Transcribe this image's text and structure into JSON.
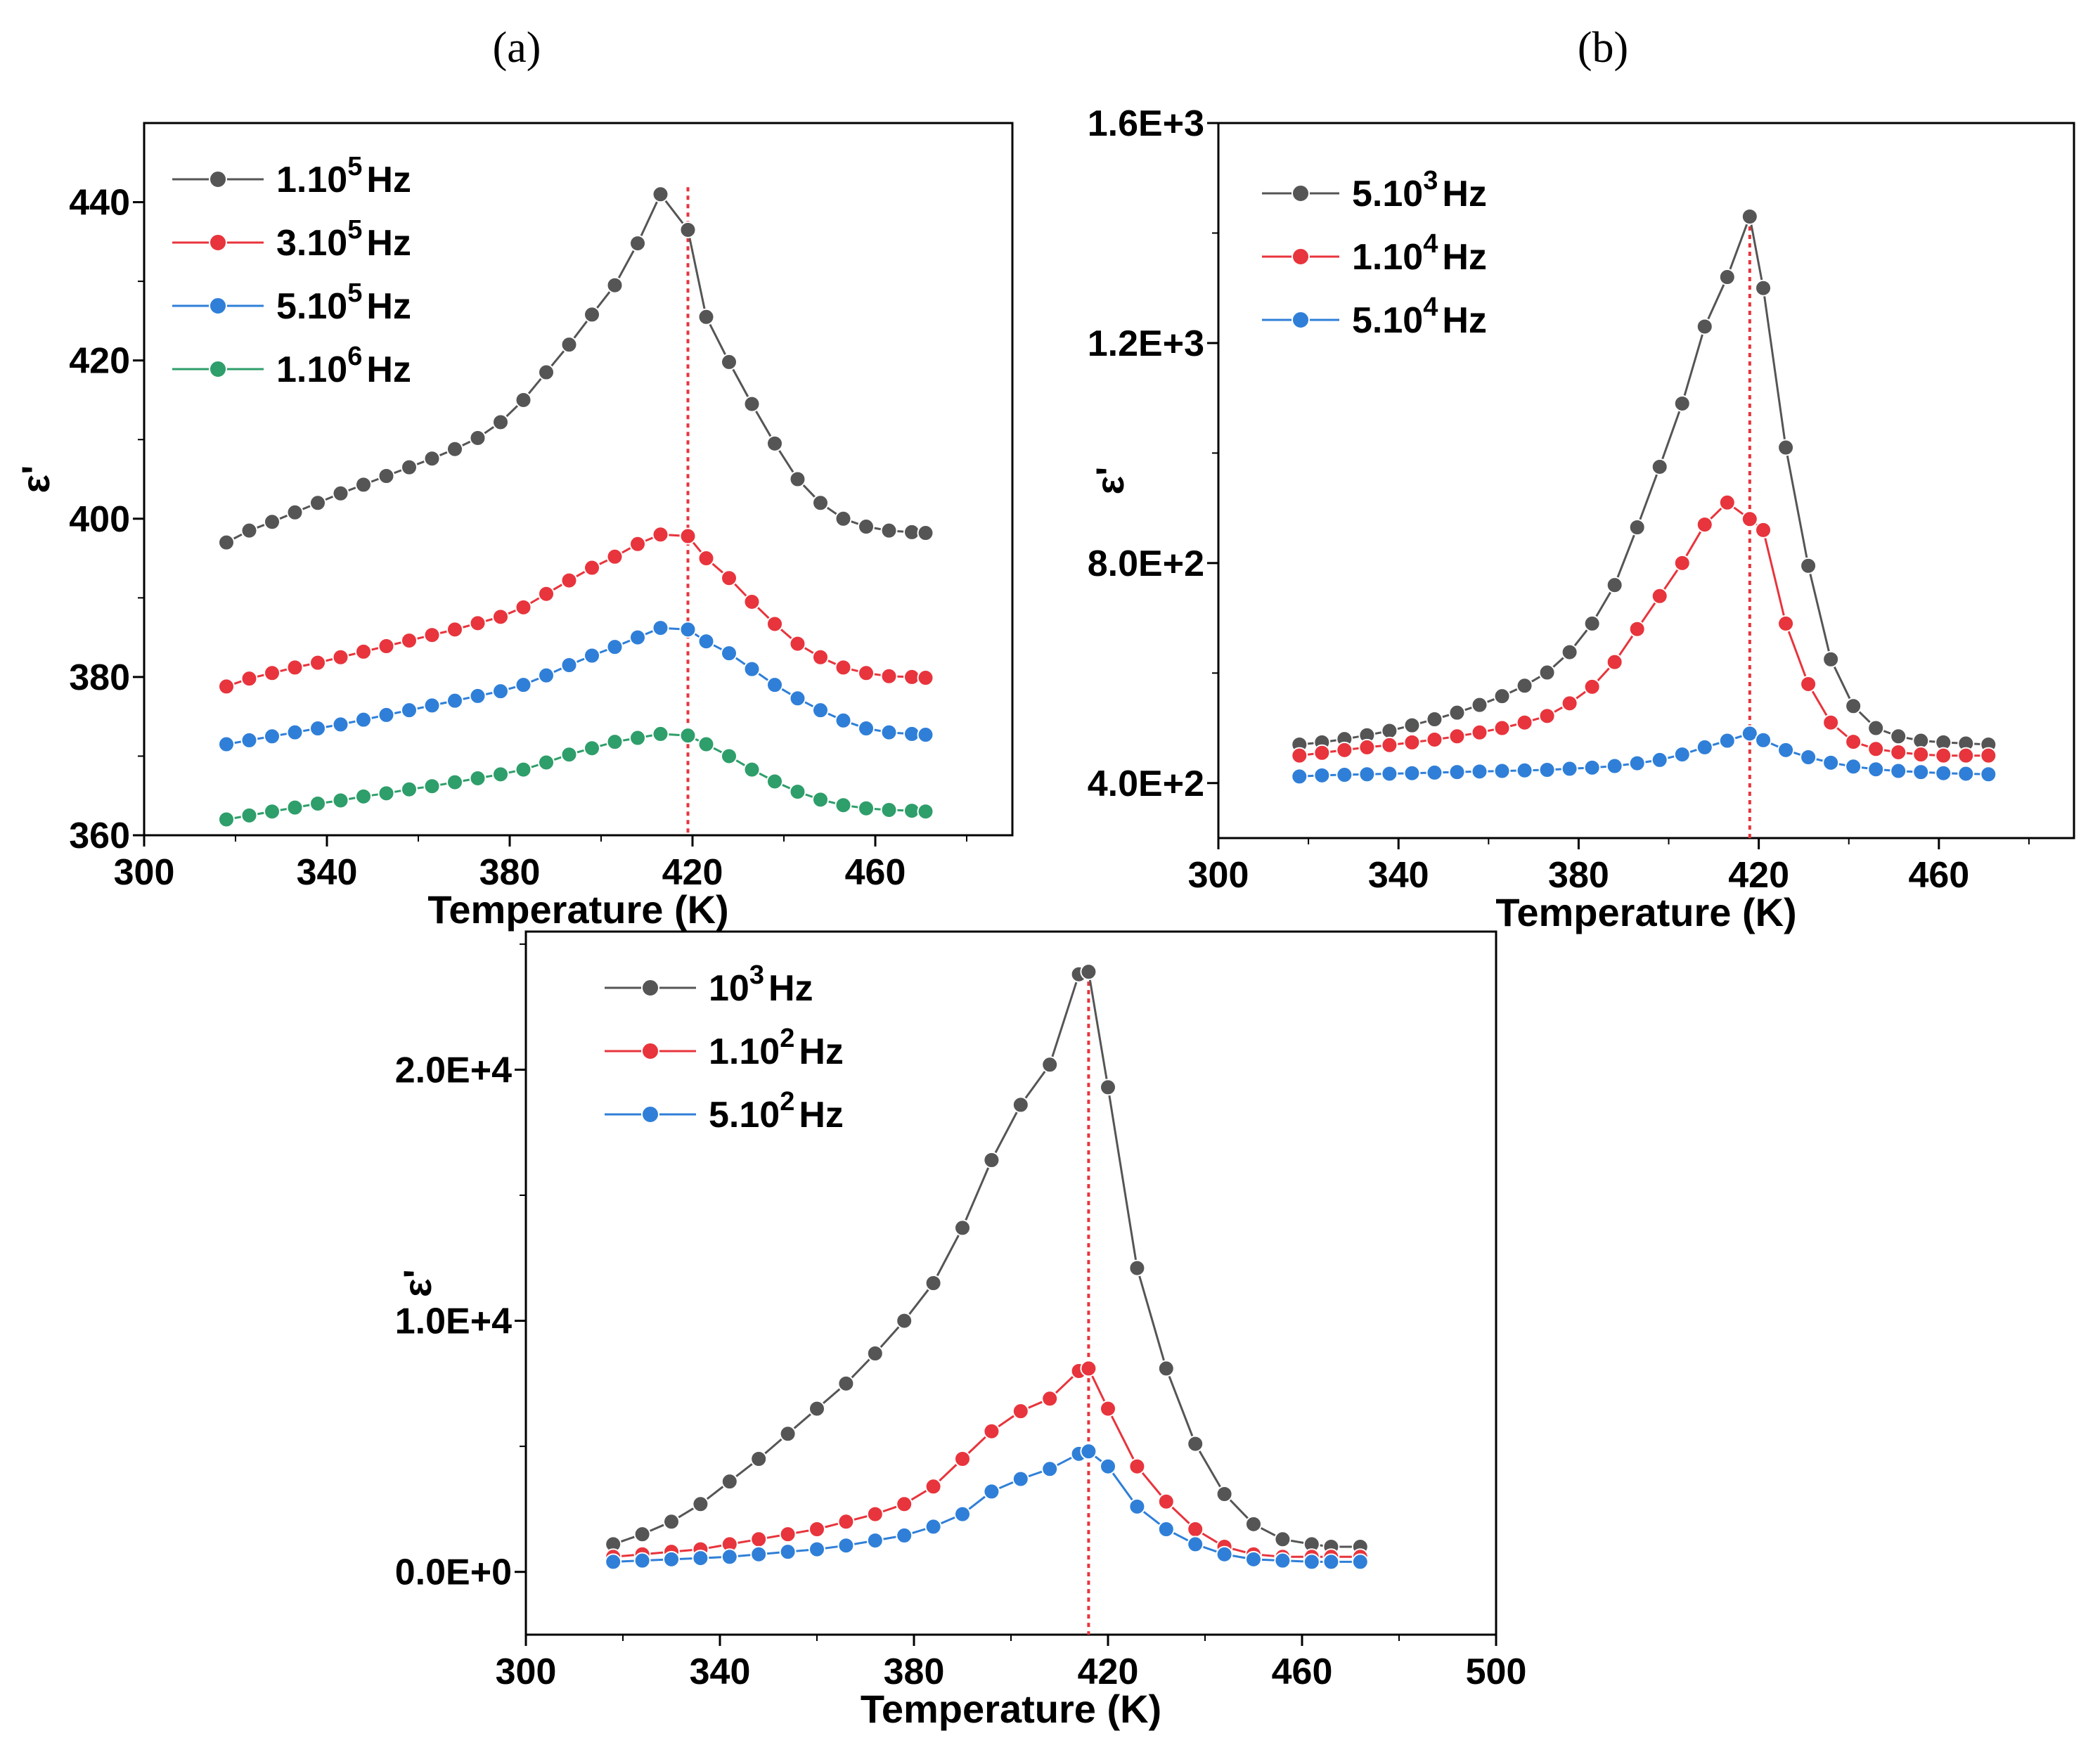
{
  "chart_data": [
    {
      "panel": "a",
      "panel_label": "(a)",
      "type": "line",
      "xlabel": "Temperature (K)",
      "ylabel": "ε'",
      "xlim": [
        300,
        490
      ],
      "ylim": [
        360,
        450
      ],
      "xticks": [
        300,
        340,
        380,
        420,
        460
      ],
      "yticks": [
        360,
        380,
        400,
        420,
        440
      ],
      "ytick_labels": [
        "360",
        "380",
        "400",
        "420",
        "440"
      ],
      "peak_line_x": 419,
      "legend_position": "top-left",
      "x": [
        318,
        323,
        328,
        333,
        338,
        343,
        348,
        353,
        358,
        363,
        368,
        373,
        378,
        383,
        388,
        393,
        398,
        403,
        408,
        413,
        419,
        423,
        428,
        433,
        438,
        443,
        448,
        453,
        458,
        463,
        468,
        471
      ],
      "series": [
        {
          "name": "1.10^5 Hz",
          "label_base": "1.10",
          "label_exp": "5",
          "label_unit": "Hz",
          "color": "#555555",
          "values": [
            397.0,
            398.5,
            399.6,
            400.8,
            402.0,
            403.2,
            404.3,
            405.4,
            406.5,
            407.6,
            408.8,
            410.2,
            412.2,
            415.0,
            418.5,
            422.0,
            425.8,
            429.5,
            434.8,
            441.0,
            436.5,
            425.5,
            419.8,
            414.5,
            409.5,
            405.0,
            402.0,
            400.0,
            399.0,
            398.5,
            398.3,
            398.2
          ]
        },
        {
          "name": "3.10^5 Hz",
          "label_base": "3.10",
          "label_exp": "5",
          "label_unit": "Hz",
          "color": "#e8343c",
          "values": [
            378.8,
            379.8,
            380.5,
            381.2,
            381.8,
            382.5,
            383.2,
            383.9,
            384.6,
            385.3,
            386.0,
            386.8,
            387.6,
            388.8,
            390.5,
            392.2,
            393.8,
            395.2,
            396.8,
            398.0,
            397.8,
            395.0,
            392.5,
            389.5,
            386.7,
            384.2,
            382.5,
            381.2,
            380.5,
            380.1,
            380.0,
            379.9
          ]
        },
        {
          "name": "5.10^5 Hz",
          "label_base": "5.10",
          "label_exp": "5",
          "label_unit": "Hz",
          "color": "#2f7fd8",
          "values": [
            371.5,
            372.0,
            372.5,
            373.0,
            373.5,
            374.0,
            374.6,
            375.2,
            375.8,
            376.4,
            377.0,
            377.6,
            378.2,
            379.0,
            380.2,
            381.5,
            382.7,
            383.8,
            385.0,
            386.2,
            386.0,
            384.5,
            383.0,
            381.0,
            379.0,
            377.3,
            375.8,
            374.5,
            373.5,
            373.0,
            372.8,
            372.7
          ]
        },
        {
          "name": "1.10^6 Hz",
          "label_base": "1.10",
          "label_exp": "6",
          "label_unit": "Hz",
          "color": "#2e9e6a",
          "values": [
            362.0,
            362.5,
            363.0,
            363.5,
            364.0,
            364.4,
            364.9,
            365.3,
            365.8,
            366.2,
            366.7,
            367.2,
            367.7,
            368.3,
            369.2,
            370.2,
            371.0,
            371.8,
            372.3,
            372.8,
            372.6,
            371.5,
            370.0,
            368.3,
            366.8,
            365.5,
            364.5,
            363.8,
            363.4,
            363.2,
            363.1,
            363.0
          ]
        }
      ]
    },
    {
      "panel": "b",
      "panel_label": "(b)",
      "type": "line",
      "xlabel": "Temperature (K)",
      "ylabel": "ε'",
      "xlim": [
        300,
        490
      ],
      "ylim": [
        300,
        1600
      ],
      "xticks": [
        300,
        340,
        380,
        420,
        460
      ],
      "yticks": [
        400,
        800,
        1200,
        1600
      ],
      "ytick_labels": [
        "4.0E+2",
        "8.0E+2",
        "1.2E+3",
        "1.6E+3"
      ],
      "peak_line_x": 418,
      "legend_position": "top-left",
      "x": [
        318,
        323,
        328,
        333,
        338,
        343,
        348,
        353,
        358,
        363,
        368,
        373,
        378,
        383,
        388,
        393,
        398,
        403,
        408,
        413,
        418,
        421,
        426,
        431,
        436,
        441,
        446,
        451,
        456,
        461,
        466,
        471
      ],
      "series": [
        {
          "name": "5.10^3 Hz",
          "label_base": "5.10",
          "label_exp": "3",
          "label_unit": "Hz",
          "color": "#555555",
          "values": [
            470,
            474,
            480,
            487,
            495,
            505,
            516,
            528,
            542,
            558,
            577,
            601,
            638,
            690,
            760,
            865,
            975,
            1090,
            1230,
            1320,
            1430,
            1300,
            1010,
            795,
            625,
            540,
            500,
            485,
            477,
            474,
            472,
            470
          ]
        },
        {
          "name": "1.10^4 Hz",
          "label_base": "1.10",
          "label_exp": "4",
          "label_unit": "Hz",
          "color": "#e8343c",
          "values": [
            450,
            455,
            460,
            465,
            469,
            474,
            479,
            485,
            492,
            500,
            510,
            522,
            545,
            575,
            620,
            680,
            740,
            800,
            870,
            910,
            880,
            860,
            690,
            580,
            510,
            475,
            462,
            456,
            452,
            450,
            450,
            450
          ]
        },
        {
          "name": "5.10^4 Hz",
          "label_base": "5.10",
          "label_exp": "4",
          "label_unit": "Hz",
          "color": "#2f7fd8",
          "values": [
            412,
            414,
            415,
            416,
            417,
            418,
            419,
            420,
            421,
            422,
            423,
            424,
            426,
            428,
            431,
            436,
            442,
            452,
            465,
            477,
            490,
            478,
            460,
            447,
            437,
            430,
            425,
            422,
            420,
            418,
            417,
            416
          ]
        }
      ]
    },
    {
      "panel": "c",
      "panel_label": "",
      "type": "line",
      "xlabel": "Temperature (K)",
      "ylabel": "ε'",
      "xlim": [
        300,
        500
      ],
      "ylim": [
        -2500,
        25500
      ],
      "xticks": [
        300,
        340,
        380,
        420,
        460,
        500
      ],
      "yticks": [
        0,
        10000,
        20000
      ],
      "ytick_labels": [
        "0.0E+0",
        "1.0E+4",
        "2.0E+4"
      ],
      "peak_line_x": 416,
      "legend_position": "top-left",
      "x": [
        318,
        324,
        330,
        336,
        342,
        348,
        354,
        360,
        366,
        372,
        378,
        384,
        390,
        396,
        402,
        408,
        414,
        416,
        420,
        426,
        432,
        438,
        444,
        450,
        456,
        462,
        466,
        472
      ],
      "series": [
        {
          "name": "10^3 Hz",
          "label_base": "10",
          "label_exp": "3",
          "label_unit": "Hz",
          "color": "#555555",
          "values": [
            1100,
            1500,
            2000,
            2700,
            3600,
            4500,
            5500,
            6500,
            7500,
            8700,
            10000,
            11500,
            13700,
            16400,
            18600,
            20200,
            23800,
            23900,
            19300,
            12100,
            8100,
            5100,
            3100,
            1900,
            1300,
            1100,
            1000,
            1000
          ]
        },
        {
          "name": "1.10^2 Hz",
          "label_base": "1.10",
          "label_exp": "2",
          "label_unit": "Hz",
          "color": "#e8343c",
          "values": [
            600,
            700,
            800,
            900,
            1100,
            1300,
            1500,
            1700,
            2000,
            2300,
            2700,
            3400,
            4500,
            5600,
            6400,
            6900,
            8000,
            8100,
            6500,
            4200,
            2800,
            1700,
            1000,
            700,
            600,
            600,
            600,
            600
          ]
        },
        {
          "name": "5.10^2 Hz",
          "label_base": "5.10",
          "label_exp": "2",
          "label_unit": "Hz",
          "color": "#2f7fd8",
          "values": [
            400,
            450,
            500,
            550,
            600,
            700,
            800,
            900,
            1050,
            1250,
            1450,
            1800,
            2300,
            3200,
            3700,
            4100,
            4700,
            4800,
            4200,
            2600,
            1700,
            1100,
            700,
            500,
            450,
            400,
            400,
            400
          ]
        }
      ]
    }
  ]
}
